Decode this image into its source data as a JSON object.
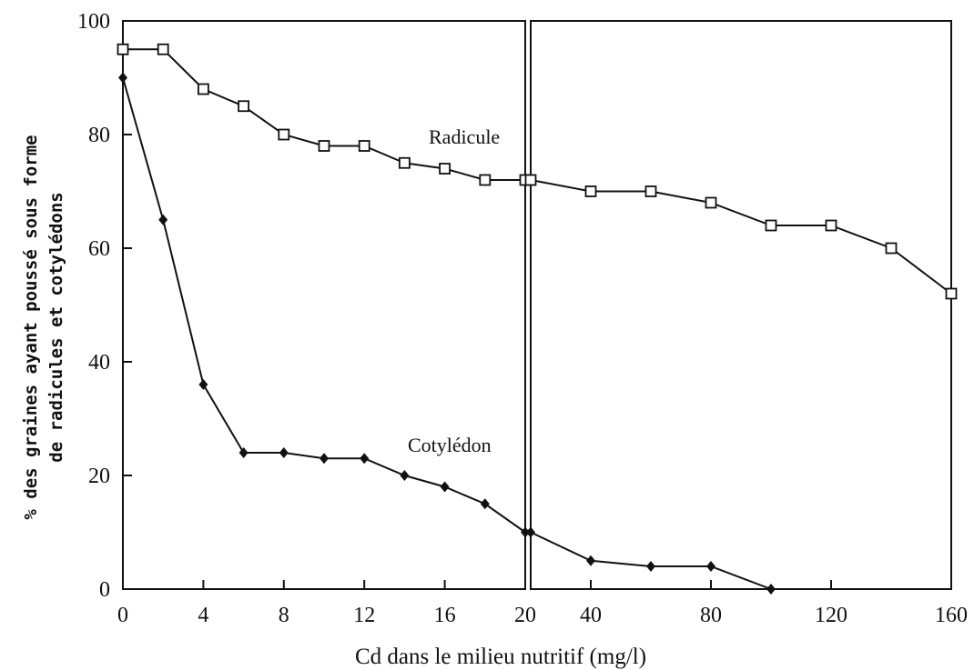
{
  "chart_data": {
    "type": "line",
    "xlabel": "Cd dans le milieu nutritif (mg/l)",
    "ylabel_lines": [
      "% des graines ayant poussé sous forme",
      "de radicules et cotylédons"
    ],
    "ylim": [
      0,
      100
    ],
    "y_ticks": [
      "0",
      "20",
      "40",
      "60",
      "80",
      "100"
    ],
    "panels": [
      {
        "x_ticks": [
          "0",
          "4",
          "8",
          "12",
          "16",
          "20"
        ],
        "xlim": [
          0,
          20
        ]
      },
      {
        "x_ticks": [
          "40",
          "80",
          "120",
          "160"
        ],
        "xlim": [
          20,
          160
        ]
      }
    ],
    "series": [
      {
        "name": "Radicule",
        "marker": "open-square",
        "x": [
          0,
          2,
          4,
          6,
          8,
          10,
          12,
          14,
          16,
          18,
          20,
          40,
          60,
          80,
          100,
          120,
          140,
          160
        ],
        "y": [
          95,
          95,
          88,
          85,
          80,
          78,
          78,
          75,
          74,
          72,
          72,
          70,
          70,
          68,
          64,
          64,
          60,
          52
        ]
      },
      {
        "name": "Cotylédon",
        "marker": "filled-diamond",
        "x": [
          0,
          2,
          4,
          6,
          8,
          10,
          12,
          14,
          16,
          18,
          20,
          40,
          60,
          80,
          100
        ],
        "y": [
          90,
          65,
          36,
          24,
          24,
          23,
          23,
          20,
          18,
          15,
          10,
          5,
          4,
          4,
          0
        ]
      }
    ],
    "colors": {
      "line": "#111111",
      "background": "#ffffff"
    }
  }
}
